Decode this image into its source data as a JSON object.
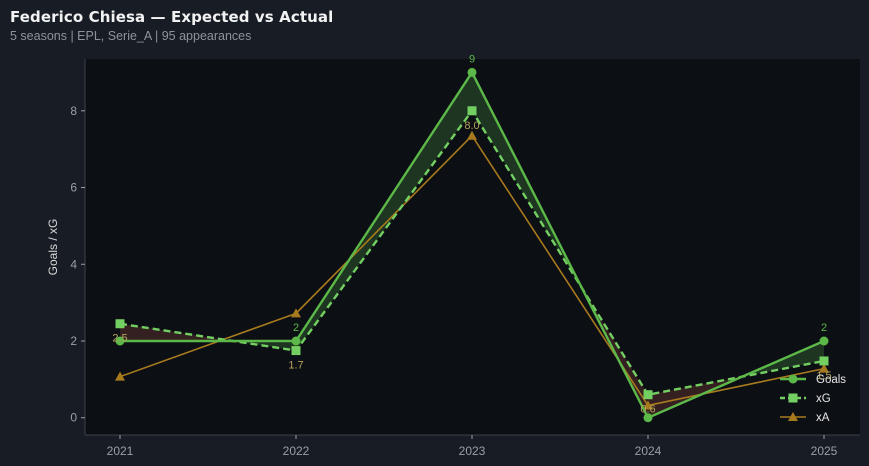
{
  "header": {
    "title": "Federico Chiesa — Expected vs Actual",
    "subtitle": "5 seasons | EPL, Serie_A | 95 appearances"
  },
  "colors": {
    "background": "#181c24",
    "plot_bg": "#0c0f14",
    "goals": "#5cb848",
    "xg": "#74cf62",
    "xa": "#a87a1e",
    "over_fill": "#1f3a22",
    "under_fill": "#3a2222"
  },
  "chart_data": {
    "type": "line",
    "title": "Federico Chiesa — Expected vs Actual",
    "xlabel": "",
    "ylabel": "Goals / xG",
    "categories": [
      "2021",
      "2022",
      "2023",
      "2024",
      "2025"
    ],
    "ylim": [
      -0.45,
      9.35
    ],
    "yticks": [
      0,
      2,
      4,
      6,
      8
    ],
    "grid": false,
    "legend_position": "bottom-right",
    "series": [
      {
        "name": "Goals",
        "values": [
          2,
          2,
          9,
          0,
          2
        ],
        "marker": "circle",
        "style": "solid",
        "labels": [
          "",
          "2",
          "9",
          "",
          "2"
        ]
      },
      {
        "name": "xG",
        "values": [
          2.45,
          1.75,
          8.0,
          0.6,
          1.48
        ],
        "marker": "square",
        "style": "dashed",
        "labels": [
          "2.5",
          "1.7",
          "8.0",
          "0.6",
          "1.5"
        ]
      },
      {
        "name": "xA",
        "values": [
          1.07,
          2.72,
          7.35,
          0.32,
          1.28
        ],
        "marker": "triangle",
        "style": "solid",
        "labels": [
          "",
          "",
          "",
          "",
          ""
        ]
      }
    ]
  }
}
